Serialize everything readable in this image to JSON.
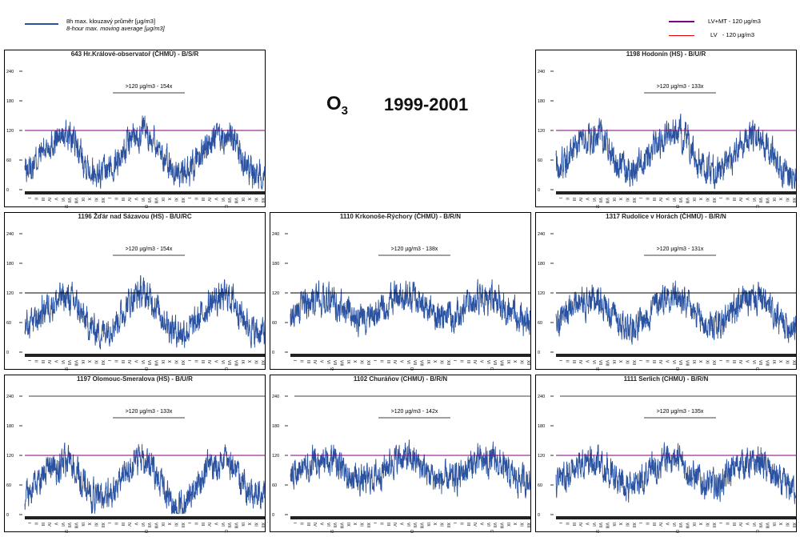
{
  "legend": {
    "series_cz": "8h max. klouzavý průměr [µg/m3]",
    "series_en": "8-hour max. moving average [µg/m3]",
    "lvmt": "LV+MT - 120 µg/m3",
    "lv": "LV   - 120 µg/m3",
    "series_color": "#2a52a0",
    "lvmt_color": "#800080",
    "lv_color": "#e00000"
  },
  "header": {
    "pollutant": "O",
    "pollutant_sub": "3",
    "period": "1999-2001"
  },
  "chart_data": {
    "type": "line",
    "ylabel": "µg/m3",
    "ylim": [
      0,
      240
    ],
    "yticks": [
      "0",
      "60",
      "120",
      "180",
      "240"
    ],
    "months": [
      "I",
      "II",
      "III",
      "IV",
      "V",
      "VI",
      "VII",
      "VIII",
      "IX",
      "X",
      "XI",
      "XII"
    ],
    "years": [
      "99",
      "00",
      "01"
    ],
    "threshold": 120,
    "stations": [
      {
        "title": "643 Hr.Králové-observatoř (ČHMÚ) - B/S/R",
        "exceed": ">120 µg/m3 - 154x",
        "limit_color": "#800080",
        "monthly": [
          40,
          55,
          75,
          90,
          100,
          105,
          110,
          95,
          70,
          50,
          35,
          30,
          40,
          55,
          70,
          95,
          110,
          115,
          110,
          100,
          75,
          50,
          35,
          30,
          35,
          45,
          70,
          95,
          105,
          100,
          110,
          95,
          70,
          45,
          30,
          30
        ]
      },
      {
        "title": "1198 Hodonín (HS) - B/U/R",
        "exceed": ">120 µg/m3 - 133x",
        "limit_color": "#800080",
        "monthly": [
          45,
          60,
          80,
          95,
          100,
          105,
          110,
          95,
          70,
          50,
          40,
          35,
          45,
          55,
          75,
          95,
          110,
          115,
          115,
          100,
          75,
          50,
          40,
          35,
          35,
          50,
          70,
          90,
          100,
          105,
          110,
          100,
          75,
          45,
          35,
          30
        ]
      },
      {
        "title": "1196 Žďár nad Sázavou (HS) - B/U/RC",
        "exceed": ">120 µg/m3 - 154x",
        "limit_color": "#000000",
        "monthly": [
          50,
          60,
          80,
          95,
          100,
          110,
          110,
          100,
          75,
          55,
          45,
          40,
          50,
          60,
          75,
          100,
          115,
          120,
          110,
          100,
          75,
          55,
          45,
          40,
          45,
          55,
          75,
          95,
          105,
          110,
          115,
          100,
          75,
          55,
          40,
          40
        ]
      },
      {
        "title": "1110 Krkonoše-Rýchory (ČHMÚ) - B/R/N",
        "exceed": ">120 µg/m3 - 138x",
        "limit_color": "#000000",
        "monthly": [
          75,
          85,
          100,
          105,
          105,
          105,
          105,
          95,
          80,
          70,
          65,
          65,
          70,
          85,
          100,
          110,
          115,
          115,
          110,
          100,
          85,
          75,
          70,
          70,
          70,
          80,
          95,
          105,
          105,
          105,
          110,
          100,
          85,
          75,
          70,
          70
        ]
      },
      {
        "title": "1317 Rudolice v Horách (ČHMÚ) - B/R/N",
        "exceed": ">120 µg/m3 - 131x",
        "limit_color": "#000000",
        "monthly": [
          60,
          75,
          90,
          100,
          100,
          105,
          105,
          95,
          75,
          60,
          55,
          55,
          60,
          70,
          90,
          105,
          115,
          115,
          110,
          95,
          80,
          65,
          55,
          55,
          55,
          65,
          85,
          100,
          105,
          105,
          110,
          95,
          75,
          60,
          55,
          55
        ]
      },
      {
        "title": "1197 Olomouc-Smeralova (HS) - B/U/R",
        "exceed": ">120 µg/m3 - 133x",
        "limit_color": "#800080",
        "monthly": [
          40,
          55,
          75,
          90,
          95,
          100,
          105,
          95,
          70,
          45,
          35,
          30,
          40,
          55,
          70,
          95,
          110,
          115,
          110,
          90,
          65,
          35,
          15,
          15,
          40,
          55,
          75,
          95,
          100,
          105,
          110,
          95,
          70,
          45,
          35,
          35
        ]
      },
      {
        "title": "1102 Churáňov (CHMU) - B/R/N",
        "exceed": ">120 µg/m3 - 142x",
        "limit_color": "#800080",
        "monthly": [
          80,
          90,
          100,
          105,
          105,
          105,
          110,
          100,
          85,
          75,
          70,
          70,
          75,
          85,
          100,
          110,
          115,
          115,
          110,
          100,
          85,
          75,
          70,
          70,
          70,
          80,
          95,
          105,
          110,
          105,
          110,
          100,
          85,
          75,
          70,
          70
        ]
      },
      {
        "title": "1111 Serlich (CHMU) - B/R/N",
        "exceed": ">120 µg/m3 - 135x",
        "limit_color": "#800080",
        "monthly": [
          70,
          80,
          95,
          100,
          105,
          105,
          110,
          95,
          80,
          65,
          55,
          55,
          65,
          80,
          95,
          105,
          115,
          115,
          110,
          95,
          80,
          70,
          60,
          60,
          60,
          75,
          90,
          105,
          105,
          100,
          110,
          95,
          80,
          65,
          55,
          55
        ]
      }
    ]
  }
}
